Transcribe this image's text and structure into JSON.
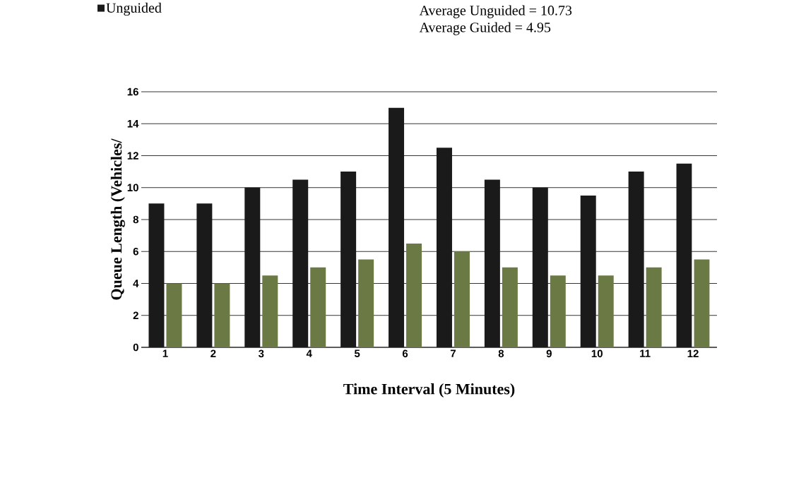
{
  "chart_data": {
    "type": "bar",
    "xlabel": "Time Interval (5 Minutes)",
    "ylabel": "Queue Length (Vehicles/",
    "categories": [
      "1",
      "2",
      "3",
      "4",
      "5",
      "6",
      "7",
      "8",
      "9",
      "10",
      "11",
      "12"
    ],
    "series": [
      {
        "name": "Unguided",
        "color": "#1a1a1a",
        "values": [
          9,
          9,
          10,
          10.5,
          11,
          15,
          12.5,
          10.5,
          10,
          9.5,
          11,
          11.5
        ]
      },
      {
        "color": "#6b7a45",
        "values": [
          4,
          4,
          4.5,
          5,
          5.5,
          6.5,
          6,
          5,
          4.5,
          4.5,
          5,
          5.5
        ]
      }
    ],
    "ylim": [
      0,
      16
    ],
    "yticks": [
      0,
      2,
      4,
      6,
      8,
      10,
      12,
      14,
      16
    ],
    "grid": "y",
    "legend": "top left",
    "annotations": [
      "Average Unguided = 10.73",
      "Average Guided      = 4.95"
    ]
  }
}
